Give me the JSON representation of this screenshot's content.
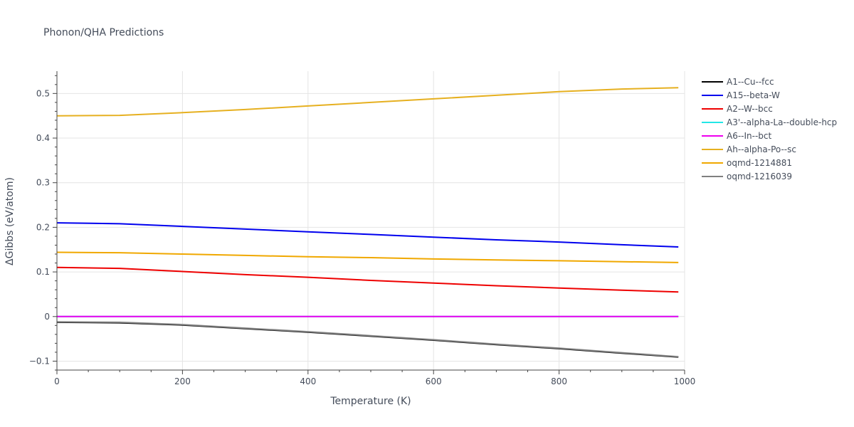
{
  "chart_data": {
    "type": "line",
    "title": "Phonon/QHA Predictions",
    "xlabel": "Temperature (K)",
    "ylabel": "ΔGibbs (eV/atom)",
    "xlim": [
      0,
      1000
    ],
    "ylim": [
      -0.12,
      0.55
    ],
    "x_ticks": [
      0,
      200,
      400,
      600,
      800,
      1000
    ],
    "x_tick_labels": [
      "0",
      "200",
      "400",
      "600",
      "800",
      "1000"
    ],
    "y_ticks": [
      -0.1,
      0,
      0.1,
      0.2,
      0.3,
      0.4,
      0.5
    ],
    "y_tick_labels": [
      "−0.1",
      "0",
      "0.1",
      "0.2",
      "0.3",
      "0.4",
      "0.5"
    ],
    "grid": true,
    "legend_position": "top-right outside",
    "series": [
      {
        "name": "A1--Cu--fcc",
        "color": "#000000",
        "x": [
          0,
          100,
          200,
          300,
          400,
          500,
          600,
          700,
          800,
          900,
          990
        ],
        "y": [
          -0.013,
          -0.014,
          -0.019,
          -0.027,
          -0.035,
          -0.044,
          -0.053,
          -0.063,
          -0.072,
          -0.082,
          -0.091
        ]
      },
      {
        "name": "A15--beta-W",
        "color": "#0000ee",
        "x": [
          0,
          100,
          200,
          300,
          400,
          500,
          600,
          700,
          800,
          900,
          990
        ],
        "y": [
          0.21,
          0.208,
          0.202,
          0.196,
          0.19,
          0.184,
          0.178,
          0.172,
          0.167,
          0.161,
          0.156
        ]
      },
      {
        "name": "A2--W--bcc",
        "color": "#ee0000",
        "x": [
          0,
          100,
          200,
          300,
          400,
          500,
          600,
          700,
          800,
          900,
          990
        ],
        "y": [
          0.11,
          0.108,
          0.101,
          0.094,
          0.088,
          0.081,
          0.075,
          0.069,
          0.064,
          0.059,
          0.055
        ]
      },
      {
        "name": "A3'--alpha-La--double-hcp",
        "color": "#22e6e6",
        "x": [
          0,
          100,
          200,
          300,
          400,
          500,
          600,
          700,
          800,
          900,
          990
        ],
        "y": [
          0,
          0,
          0,
          0,
          0,
          0,
          0,
          0,
          0,
          0,
          0
        ]
      },
      {
        "name": "A6--In--bct",
        "color": "#ee00ee",
        "x": [
          0,
          100,
          200,
          300,
          400,
          500,
          600,
          700,
          800,
          900,
          990
        ],
        "y": [
          0,
          0,
          0,
          0,
          0,
          0,
          0,
          0,
          0,
          0,
          0
        ]
      },
      {
        "name": "Ah--alpha-Po--sc",
        "color": "#e6b020",
        "x": [
          0,
          100,
          200,
          300,
          400,
          500,
          600,
          700,
          800,
          900,
          990
        ],
        "y": [
          0.45,
          0.451,
          0.457,
          0.464,
          0.472,
          0.48,
          0.488,
          0.496,
          0.504,
          0.51,
          0.513
        ]
      },
      {
        "name": "oqmd-1214881",
        "color": "#f0a800",
        "x": [
          0,
          100,
          200,
          300,
          400,
          500,
          600,
          700,
          800,
          900,
          990
        ],
        "y": [
          0.144,
          0.143,
          0.14,
          0.137,
          0.134,
          0.132,
          0.129,
          0.127,
          0.125,
          0.123,
          0.121
        ]
      },
      {
        "name": "oqmd-1216039",
        "color": "#808080",
        "x": [
          0,
          100,
          200,
          300,
          400,
          500,
          600,
          700,
          800,
          900,
          990
        ],
        "y": [
          -0.012,
          -0.013,
          -0.018,
          -0.026,
          -0.034,
          -0.043,
          -0.052,
          -0.062,
          -0.071,
          -0.081,
          -0.09
        ]
      }
    ]
  }
}
